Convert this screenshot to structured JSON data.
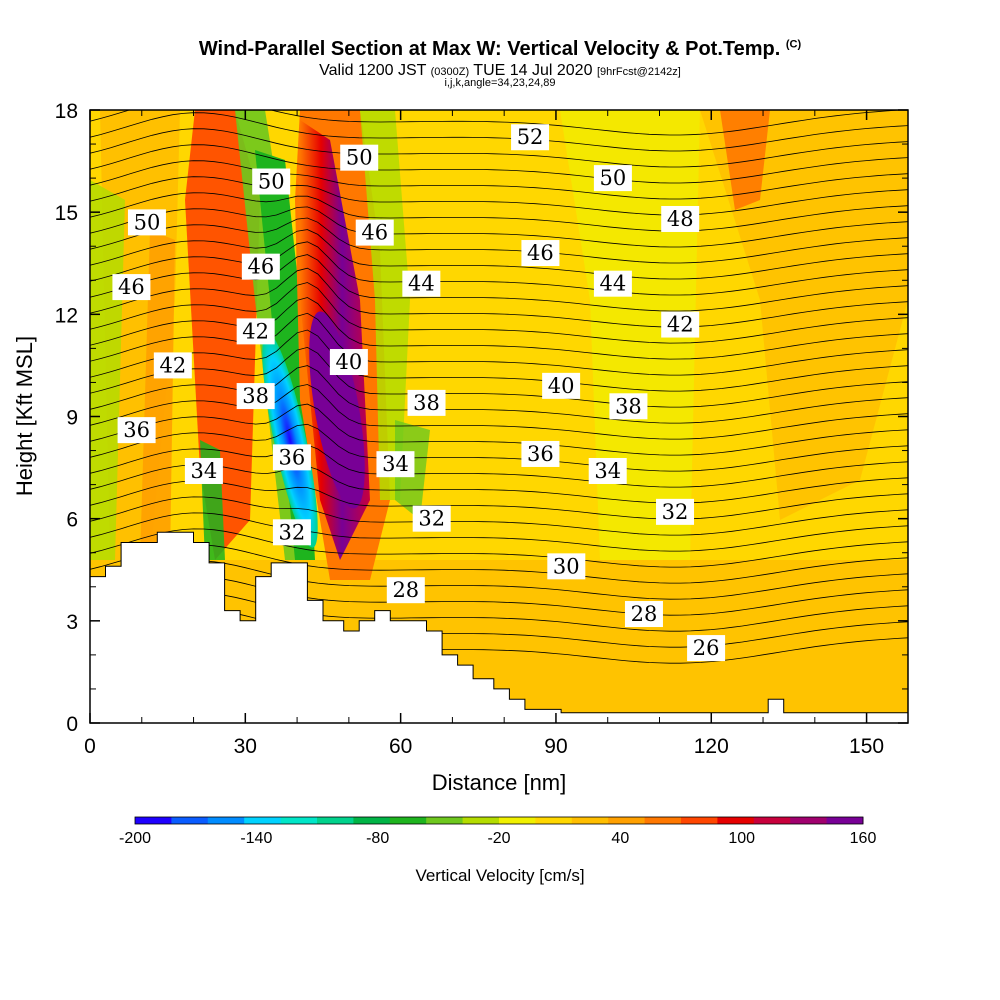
{
  "chart_data": {
    "type": "heatmap",
    "title": "Wind-Parallel Section at Max W: Vertical Velocity & Pot.Temp.",
    "title_mark": "(C)",
    "subtitle_main": "Valid 1200 JST",
    "subtitle_utc": "(0300Z)",
    "subtitle_date": "TUE 14 Jul 2020",
    "subtitle_fcst": "[9hrFcst@2142z]",
    "subtitle2": "i,j,k,angle=34,23,24,89",
    "xlabel": "Distance [nm]",
    "ylabel": "Height [Kft MSL]",
    "xlim": [
      0,
      158
    ],
    "ylim": [
      0,
      18
    ],
    "xticks": [
      0,
      30,
      60,
      90,
      120,
      150
    ],
    "yticks": [
      0,
      3,
      6,
      9,
      12,
      15,
      18
    ],
    "colorbar": {
      "title": "Vertical Velocity [cm/s]",
      "ticks": [
        -200,
        -140,
        -80,
        -20,
        40,
        100,
        160
      ],
      "colors": [
        "#1e00ff",
        "#0a5cff",
        "#008cff",
        "#00d2ff",
        "#00e6c8",
        "#00d28c",
        "#00b446",
        "#1eb41e",
        "#6ec81e",
        "#b4dc00",
        "#f0f000",
        "#ffd700",
        "#ffbe00",
        "#ffa000",
        "#ff7800",
        "#ff4600",
        "#e60000",
        "#c8003c",
        "#a0006e",
        "#780096"
      ]
    },
    "updraft_core": {
      "x_center": 46,
      "y_bottom": 6.5,
      "y_top": 12,
      "max_cms": 160
    },
    "downdraft_core": {
      "x_center": 39,
      "y_bottom": 4.7,
      "y_top": 10.5,
      "min_cms": -200
    },
    "theta_contours": [
      {
        "label": "26",
        "x": 119,
        "y": 2.2
      },
      {
        "label": "28",
        "x": 107,
        "y": 3.2
      },
      {
        "label": "28",
        "x": 61,
        "y": 3.9
      },
      {
        "label": "30",
        "x": 92,
        "y": 4.6
      },
      {
        "label": "32",
        "x": 39,
        "y": 5.6
      },
      {
        "label": "32",
        "x": 66,
        "y": 6.0
      },
      {
        "label": "32",
        "x": 113,
        "y": 6.2
      },
      {
        "label": "34",
        "x": 22,
        "y": 7.4
      },
      {
        "label": "34",
        "x": 59,
        "y": 7.6
      },
      {
        "label": "34",
        "x": 100,
        "y": 7.4
      },
      {
        "label": "36",
        "x": 9,
        "y": 8.6
      },
      {
        "label": "36",
        "x": 39,
        "y": 7.8
      },
      {
        "label": "36",
        "x": 87,
        "y": 7.9
      },
      {
        "label": "38",
        "x": 32,
        "y": 9.6
      },
      {
        "label": "38",
        "x": 65,
        "y": 9.4
      },
      {
        "label": "38",
        "x": 104,
        "y": 9.3
      },
      {
        "label": "40",
        "x": 50,
        "y": 10.6
      },
      {
        "label": "40",
        "x": 91,
        "y": 9.9
      },
      {
        "label": "42",
        "x": 16,
        "y": 10.5
      },
      {
        "label": "42",
        "x": 32,
        "y": 11.5
      },
      {
        "label": "42",
        "x": 114,
        "y": 11.7
      },
      {
        "label": "44",
        "x": 64,
        "y": 12.9
      },
      {
        "label": "44",
        "x": 101,
        "y": 12.9
      },
      {
        "label": "46",
        "x": 8,
        "y": 12.8
      },
      {
        "label": "46",
        "x": 33,
        "y": 13.4
      },
      {
        "label": "46",
        "x": 55,
        "y": 14.4
      },
      {
        "label": "46",
        "x": 87,
        "y": 13.8
      },
      {
        "label": "48",
        "x": 114,
        "y": 14.8
      },
      {
        "label": "50",
        "x": 11,
        "y": 14.7
      },
      {
        "label": "50",
        "x": 35,
        "y": 15.9
      },
      {
        "label": "50",
        "x": 52,
        "y": 16.6
      },
      {
        "label": "50",
        "x": 101,
        "y": 16.0
      },
      {
        "label": "52",
        "x": 85,
        "y": 17.2
      }
    ],
    "terrain_kft": [
      [
        0,
        4.3
      ],
      [
        3,
        4.3
      ],
      [
        3,
        4.6
      ],
      [
        6,
        4.6
      ],
      [
        6,
        5.3
      ],
      [
        13,
        5.3
      ],
      [
        13,
        5.6
      ],
      [
        20,
        5.6
      ],
      [
        20,
        5.3
      ],
      [
        23,
        5.3
      ],
      [
        23,
        4.7
      ],
      [
        26,
        4.7
      ],
      [
        26,
        3.3
      ],
      [
        29,
        3.3
      ],
      [
        29,
        3.0
      ],
      [
        32,
        3.0
      ],
      [
        32,
        4.3
      ],
      [
        35,
        4.3
      ],
      [
        35,
        4.7
      ],
      [
        42,
        4.7
      ],
      [
        42,
        3.6
      ],
      [
        45,
        3.6
      ],
      [
        45,
        3.0
      ],
      [
        49,
        3.0
      ],
      [
        49,
        2.7
      ],
      [
        52,
        2.7
      ],
      [
        52,
        3.0
      ],
      [
        55,
        3.0
      ],
      [
        55,
        3.3
      ],
      [
        58,
        3.3
      ],
      [
        58,
        3.0
      ],
      [
        65,
        3.0
      ],
      [
        65,
        2.7
      ],
      [
        68,
        2.7
      ],
      [
        68,
        2.0
      ],
      [
        71,
        2.0
      ],
      [
        71,
        1.7
      ],
      [
        74,
        1.7
      ],
      [
        74,
        1.3
      ],
      [
        78,
        1.3
      ],
      [
        78,
        1.0
      ],
      [
        81,
        1.0
      ],
      [
        81,
        0.7
      ],
      [
        84,
        0.7
      ],
      [
        84,
        0.4
      ],
      [
        91,
        0.4
      ],
      [
        91,
        0.3
      ],
      [
        100,
        0.3
      ],
      [
        100,
        0.3
      ],
      [
        131,
        0.3
      ],
      [
        131,
        0.7
      ],
      [
        134,
        0.7
      ],
      [
        134,
        0.3
      ],
      [
        158,
        0.3
      ],
      [
        158,
        0
      ],
      [
        0,
        0
      ]
    ]
  }
}
